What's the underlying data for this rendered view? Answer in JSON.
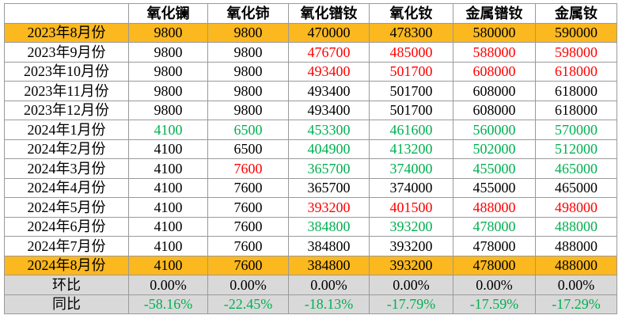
{
  "table": {
    "header": [
      "氧化镧",
      "氧化铈",
      "氧化镨钕",
      "氧化钕",
      "金属镨钕",
      "金属钕"
    ],
    "rows": [
      {
        "label": "2023年8月份",
        "background": "#fbb81f",
        "cells": [
          "9800",
          "9800",
          "470000",
          "478300",
          "580000",
          "590000"
        ],
        "colors": [
          "#000000",
          "#000000",
          "#000000",
          "#000000",
          "#000000",
          "#000000"
        ]
      },
      {
        "label": "2023年9月份",
        "cells": [
          "9800",
          "9800",
          "476700",
          "485000",
          "588000",
          "598000"
        ],
        "colors": [
          "#000000",
          "#000000",
          "#ff0000",
          "#ff0000",
          "#ff0000",
          "#ff0000"
        ]
      },
      {
        "label": "2023年10月份",
        "cells": [
          "9800",
          "9800",
          "493400",
          "501700",
          "608000",
          "618000"
        ],
        "colors": [
          "#000000",
          "#000000",
          "#ff0000",
          "#ff0000",
          "#ff0000",
          "#ff0000"
        ]
      },
      {
        "label": "2023年11月份",
        "cells": [
          "9800",
          "9800",
          "493400",
          "501700",
          "608000",
          "618000"
        ],
        "colors": [
          "#000000",
          "#000000",
          "#000000",
          "#000000",
          "#000000",
          "#000000"
        ]
      },
      {
        "label": "2023年12月份",
        "cells": [
          "9800",
          "9800",
          "493400",
          "501700",
          "608000",
          "618000"
        ],
        "colors": [
          "#000000",
          "#000000",
          "#000000",
          "#000000",
          "#000000",
          "#000000"
        ]
      },
      {
        "label": "2024年1月份",
        "cells": [
          "4100",
          "6500",
          "453300",
          "461600",
          "560000",
          "570000"
        ],
        "colors": [
          "#00b050",
          "#00b050",
          "#00b050",
          "#00b050",
          "#00b050",
          "#00b050"
        ]
      },
      {
        "label": "2024年2月份",
        "cells": [
          "4100",
          "6500",
          "404900",
          "413200",
          "502000",
          "512000"
        ],
        "colors": [
          "#000000",
          "#000000",
          "#00b050",
          "#00b050",
          "#00b050",
          "#00b050"
        ]
      },
      {
        "label": "2024年3月份",
        "cells": [
          "4100",
          "7600",
          "365700",
          "374000",
          "455000",
          "465000"
        ],
        "colors": [
          "#000000",
          "#ff0000",
          "#00b050",
          "#00b050",
          "#00b050",
          "#00b050"
        ]
      },
      {
        "label": "2024年4月份",
        "cells": [
          "4100",
          "7600",
          "365700",
          "374000",
          "455000",
          "465000"
        ],
        "colors": [
          "#000000",
          "#000000",
          "#000000",
          "#000000",
          "#000000",
          "#000000"
        ]
      },
      {
        "label": "2024年5月份",
        "cells": [
          "4100",
          "7600",
          "393200",
          "401500",
          "488000",
          "498000"
        ],
        "colors": [
          "#000000",
          "#000000",
          "#ff0000",
          "#ff0000",
          "#ff0000",
          "#ff0000"
        ]
      },
      {
        "label": "2024年6月份",
        "cells": [
          "4100",
          "7600",
          "384800",
          "393200",
          "478000",
          "488000"
        ],
        "colors": [
          "#000000",
          "#000000",
          "#00b050",
          "#00b050",
          "#00b050",
          "#00b050"
        ]
      },
      {
        "label": "2024年7月份",
        "cells": [
          "4100",
          "7600",
          "384800",
          "393200",
          "478000",
          "488000"
        ],
        "colors": [
          "#000000",
          "#000000",
          "#000000",
          "#000000",
          "#000000",
          "#000000"
        ]
      },
      {
        "label": "2024年8月份",
        "background": "#fbb81f",
        "cells": [
          "4100",
          "7600",
          "384800",
          "393200",
          "478000",
          "488000"
        ],
        "colors": [
          "#000000",
          "#000000",
          "#000000",
          "#000000",
          "#000000",
          "#000000"
        ]
      },
      {
        "label": "环比",
        "background": "#d9d9d9",
        "cells": [
          "0.00%",
          "0.00%",
          "0.00%",
          "0.00%",
          "0.00%",
          "0.00%"
        ],
        "colors": [
          "#000000",
          "#000000",
          "#000000",
          "#000000",
          "#000000",
          "#000000"
        ]
      },
      {
        "label": "同比",
        "background": "#d9d9d9",
        "cells": [
          "-58.16%",
          "-22.45%",
          "-18.13%",
          "-17.79%",
          "-17.59%",
          "-17.29%"
        ],
        "colors": [
          "#00b050",
          "#00b050",
          "#00b050",
          "#00b050",
          "#00b050",
          "#00b050"
        ]
      }
    ]
  }
}
